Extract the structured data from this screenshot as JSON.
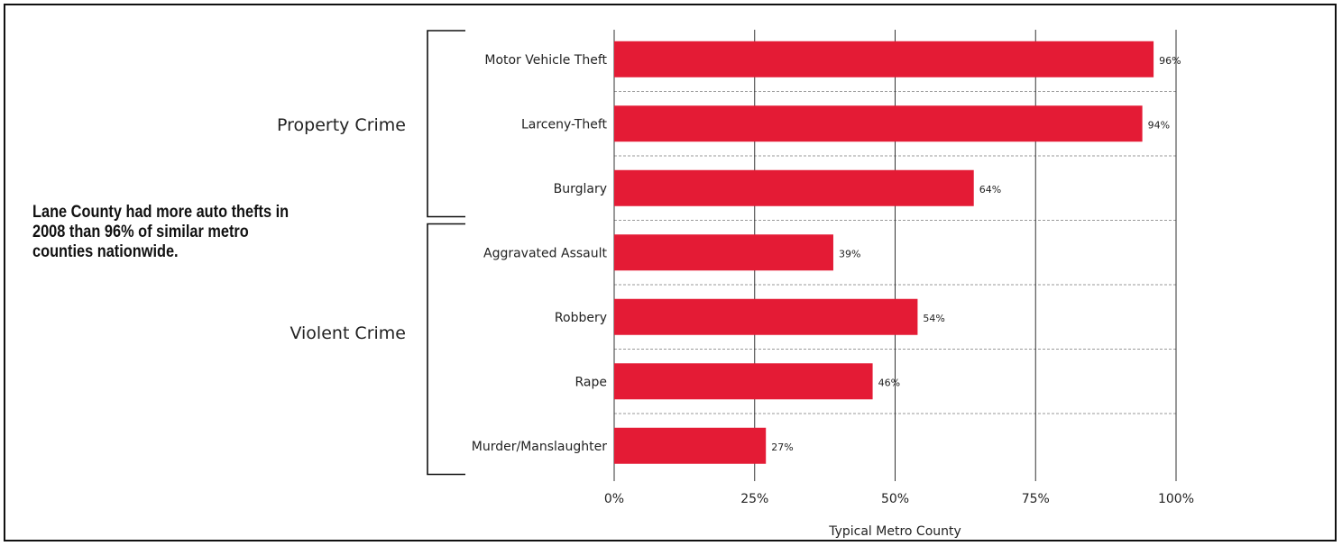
{
  "callout": "Lane County had more auto thefts in 2008 than 96% of similar metro counties nationwide.",
  "groups": [
    {
      "label": "Property Crime",
      "members": [
        "Motor Vehicle Theft",
        "Larceny-Theft",
        "Burglary"
      ]
    },
    {
      "label": "Violent Crime",
      "members": [
        "Aggravated Assault",
        "Robbery",
        "Rape",
        "Murder/Manslaughter"
      ]
    }
  ],
  "chart_data": {
    "type": "bar",
    "orientation": "horizontal",
    "categories": [
      "Motor Vehicle Theft",
      "Larceny-Theft",
      "Burglary",
      "Aggravated Assault",
      "Robbery",
      "Rape",
      "Murder/Manslaughter"
    ],
    "values": [
      96,
      94,
      64,
      39,
      54,
      46,
      27
    ],
    "data_labels": [
      "96%",
      "94%",
      "64%",
      "39%",
      "54%",
      "46%",
      "27%"
    ],
    "xlabel": "Typical Metro County",
    "xlim": [
      0,
      100
    ],
    "xticks": [
      0,
      25,
      50,
      75,
      100
    ],
    "xtick_labels": [
      "0%",
      "25%",
      "50%",
      "75%",
      "100%"
    ],
    "grid": true,
    "colors": {
      "bar": "#e41b35",
      "grid": "#333333",
      "separator": "#9a9a9a"
    }
  }
}
